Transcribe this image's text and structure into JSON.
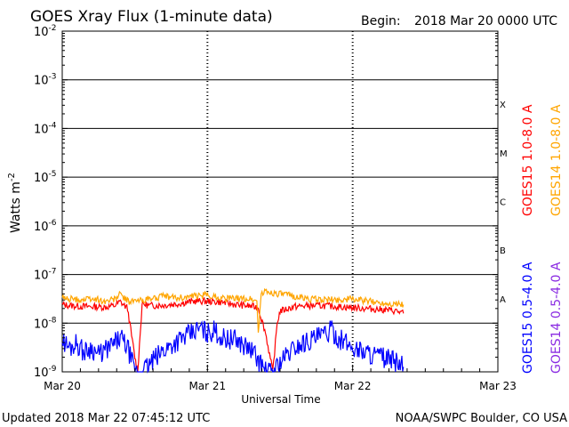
{
  "chart_data": {
    "type": "line",
    "title": "GOES Xray Flux (1-minute data)",
    "begin_label": "Begin:",
    "begin_value": "2018 Mar 20 0000 UTC",
    "ylabel": "Watts m",
    "ylabel_exp": "-2",
    "xlabel": "Universal Time",
    "yscale": "log",
    "ylim_exp": [
      -9,
      -2
    ],
    "y_ticks": [
      {
        "base": "10",
        "exp": "-2"
      },
      {
        "base": "10",
        "exp": "-3"
      },
      {
        "base": "10",
        "exp": "-4"
      },
      {
        "base": "10",
        "exp": "-5"
      },
      {
        "base": "10",
        "exp": "-6"
      },
      {
        "base": "10",
        "exp": "-7"
      },
      {
        "base": "10",
        "exp": "-8"
      },
      {
        "base": "10",
        "exp": "-9"
      }
    ],
    "x_ticks": [
      "Mar 20",
      "Mar 21",
      "Mar 22",
      "Mar 23"
    ],
    "xlim_days": [
      0,
      3
    ],
    "flare_classes": [
      "X",
      "M",
      "C",
      "B",
      "A"
    ],
    "series": [
      {
        "name": "GOES15 1.0-8.0 A",
        "color": "#ff0000",
        "points": [
          [
            0.0,
            -7.62
          ],
          [
            0.1,
            -7.65
          ],
          [
            0.2,
            -7.66
          ],
          [
            0.3,
            -7.67
          ],
          [
            0.36,
            -7.64
          ],
          [
            0.4,
            -7.56
          ],
          [
            0.45,
            -7.7
          ],
          [
            0.5,
            -8.7
          ],
          [
            0.52,
            -9.0
          ],
          [
            0.55,
            -7.6
          ],
          [
            0.6,
            -7.64
          ],
          [
            0.7,
            -7.63
          ],
          [
            0.8,
            -7.6
          ],
          [
            0.9,
            -7.55
          ],
          [
            1.0,
            -7.55
          ],
          [
            1.1,
            -7.57
          ],
          [
            1.2,
            -7.62
          ],
          [
            1.3,
            -7.65
          ],
          [
            1.35,
            -7.68
          ],
          [
            1.4,
            -8.2
          ],
          [
            1.45,
            -9.0
          ],
          [
            1.48,
            -8.0
          ],
          [
            1.5,
            -7.75
          ],
          [
            1.6,
            -7.66
          ],
          [
            1.7,
            -7.64
          ],
          [
            1.8,
            -7.64
          ],
          [
            1.9,
            -7.66
          ],
          [
            2.0,
            -7.68
          ],
          [
            2.1,
            -7.7
          ],
          [
            2.2,
            -7.72
          ],
          [
            2.3,
            -7.75
          ],
          [
            2.35,
            -7.8
          ]
        ]
      },
      {
        "name": "GOES14 1.0-8.0 A",
        "color": "#ffa500",
        "points": [
          [
            0.0,
            -7.48
          ],
          [
            0.1,
            -7.52
          ],
          [
            0.2,
            -7.5
          ],
          [
            0.3,
            -7.55
          ],
          [
            0.36,
            -7.5
          ],
          [
            0.4,
            -7.4
          ],
          [
            0.45,
            -7.55
          ],
          [
            0.5,
            -7.55
          ],
          [
            0.6,
            -7.5
          ],
          [
            0.7,
            -7.45
          ],
          [
            0.8,
            -7.48
          ],
          [
            0.9,
            -7.45
          ],
          [
            1.0,
            -7.42
          ],
          [
            1.1,
            -7.48
          ],
          [
            1.2,
            -7.5
          ],
          [
            1.3,
            -7.5
          ],
          [
            1.34,
            -7.55
          ],
          [
            1.35,
            -8.2
          ],
          [
            1.37,
            -7.4
          ],
          [
            1.4,
            -7.35
          ],
          [
            1.5,
            -7.4
          ],
          [
            1.6,
            -7.45
          ],
          [
            1.7,
            -7.5
          ],
          [
            1.8,
            -7.52
          ],
          [
            1.9,
            -7.52
          ],
          [
            2.0,
            -7.5
          ],
          [
            2.1,
            -7.55
          ],
          [
            2.2,
            -7.58
          ],
          [
            2.3,
            -7.6
          ],
          [
            2.35,
            -7.62
          ]
        ]
      },
      {
        "name": "GOES15 0.5-4.0 A",
        "color": "#0000ff",
        "points": [
          [
            0.0,
            -8.35
          ],
          [
            0.05,
            -8.5
          ],
          [
            0.1,
            -8.4
          ],
          [
            0.15,
            -8.6
          ],
          [
            0.2,
            -8.5
          ],
          [
            0.25,
            -8.65
          ],
          [
            0.3,
            -8.55
          ],
          [
            0.35,
            -8.45
          ],
          [
            0.4,
            -8.3
          ],
          [
            0.45,
            -8.5
          ],
          [
            0.48,
            -8.8
          ],
          [
            0.5,
            -9.0
          ],
          [
            0.55,
            -9.0
          ],
          [
            0.6,
            -8.85
          ],
          [
            0.7,
            -8.55
          ],
          [
            0.8,
            -8.35
          ],
          [
            0.9,
            -8.2
          ],
          [
            0.95,
            -8.1
          ],
          [
            1.0,
            -8.2
          ],
          [
            1.05,
            -8.15
          ],
          [
            1.1,
            -8.3
          ],
          [
            1.2,
            -8.35
          ],
          [
            1.3,
            -8.55
          ],
          [
            1.35,
            -8.75
          ],
          [
            1.4,
            -9.0
          ],
          [
            1.45,
            -9.0
          ],
          [
            1.5,
            -8.8
          ],
          [
            1.6,
            -8.5
          ],
          [
            1.7,
            -8.35
          ],
          [
            1.8,
            -8.25
          ],
          [
            1.85,
            -8.15
          ],
          [
            1.9,
            -8.3
          ],
          [
            2.0,
            -8.5
          ],
          [
            2.1,
            -8.6
          ],
          [
            2.2,
            -8.7
          ],
          [
            2.3,
            -8.8
          ],
          [
            2.35,
            -8.9
          ]
        ]
      },
      {
        "name": "GOES14 0.5-4.0 A",
        "color": "#8a2be2",
        "points": []
      }
    ]
  },
  "footer": {
    "updated": "Updated 2018 Mar 22 07:45:12 UTC",
    "credit": "NOAA/SWPC Boulder, CO USA"
  }
}
